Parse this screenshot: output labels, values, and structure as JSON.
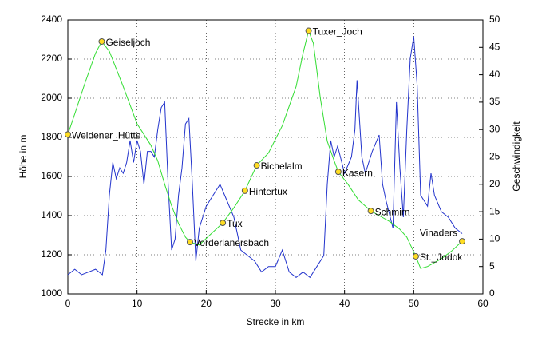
{
  "chart_data": {
    "type": "line",
    "xlabel": "Strecke in km",
    "ylabel": "Höhe in m",
    "y2label": "Geschwindigkeit",
    "xlim": [
      0,
      60
    ],
    "xticks": [
      0,
      10,
      20,
      30,
      40,
      50,
      60
    ],
    "ylim": [
      1000,
      2400
    ],
    "yticks": [
      1000,
      1200,
      1400,
      1600,
      1800,
      2000,
      2200,
      2400
    ],
    "y2lim": [
      0,
      50
    ],
    "y2ticks": [
      0,
      5,
      10,
      15,
      20,
      25,
      30,
      35,
      40,
      45,
      50
    ],
    "grid": true,
    "series": [
      {
        "color": "#33dd33",
        "x": [
          0,
          1,
          2.5,
          4,
          4.9,
          6,
          8,
          10,
          12,
          13,
          14,
          15,
          16,
          17,
          17.65,
          19,
          20.5,
          22.4,
          24,
          25.6,
          27.3,
          29,
          31,
          33,
          34,
          34.8,
          35.5,
          36.5,
          37.5,
          38.5,
          39.1,
          40.5,
          42,
          43.8,
          45,
          46.5,
          48,
          49,
          50.3,
          51,
          52,
          54,
          55.5,
          57
        ],
        "values": [
          1815,
          1920,
          2080,
          2230,
          2290,
          2240,
          2060,
          1870,
          1760,
          1680,
          1560,
          1450,
          1360,
          1290,
          1265,
          1250,
          1300,
          1363,
          1440,
          1527,
          1657,
          1720,
          1860,
          2060,
          2230,
          2345,
          2280,
          2000,
          1780,
          1680,
          1624,
          1560,
          1480,
          1424,
          1400,
          1370,
          1330,
          1290,
          1192,
          1130,
          1140,
          1180,
          1220,
          1269
        ]
      },
      {
        "color": "#2233cc",
        "axis": "y2",
        "x": [
          0,
          1,
          2,
          3,
          4,
          5,
          5.5,
          6,
          6.5,
          7,
          7.5,
          8,
          8.5,
          9,
          9.5,
          10,
          10.5,
          11,
          11.5,
          12,
          12.5,
          13,
          13.5,
          14,
          14.5,
          15,
          15.5,
          16,
          16.5,
          17,
          17.5,
          18,
          18.5,
          19,
          20,
          21,
          22,
          23,
          24,
          25,
          26,
          27,
          28,
          29,
          30,
          31,
          32,
          33,
          34,
          35,
          36,
          37,
          37.5,
          38,
          38.5,
          39,
          40,
          41,
          41.5,
          41.8,
          42.5,
          43,
          44,
          45,
          45.5,
          46,
          47,
          47.5,
          48,
          48.5,
          49,
          49.5,
          50,
          50.5,
          51,
          52,
          52.5,
          53,
          54,
          55,
          56,
          57
        ],
        "values": [
          3.5,
          4.5,
          3.5,
          4,
          4.5,
          3.5,
          8,
          18,
          24,
          21,
          23,
          22,
          24,
          28,
          24,
          28,
          26,
          20,
          26,
          26,
          25,
          30,
          34,
          35,
          20,
          8,
          10,
          18,
          23,
          31,
          32,
          20,
          6,
          12,
          16,
          18,
          20,
          17,
          14,
          8,
          7,
          6,
          4,
          5,
          5,
          8,
          4,
          3,
          4,
          3,
          5,
          7,
          20,
          28,
          25,
          27,
          22,
          25,
          30,
          39,
          25,
          22,
          26,
          29,
          20,
          17,
          12,
          35,
          23,
          14,
          30,
          43,
          47,
          38,
          18,
          16,
          22,
          18,
          15,
          14,
          12,
          11
        ]
      }
    ],
    "points": [
      {
        "label": "Weidener_Hütte",
        "x": 0,
        "y": 1815
      },
      {
        "label": "Geiseljoch",
        "x": 4.9,
        "y": 2290
      },
      {
        "label": "Vorderlanersbach",
        "x": 17.65,
        "y": 1265
      },
      {
        "label": "Tux",
        "x": 22.4,
        "y": 1363
      },
      {
        "label": "Hintertux",
        "x": 25.6,
        "y": 1527
      },
      {
        "label": "Bichelalm",
        "x": 27.3,
        "y": 1657
      },
      {
        "label": "Tuxer_Joch",
        "x": 34.8,
        "y": 2345
      },
      {
        "label": "Kasern",
        "x": 39.1,
        "y": 1624
      },
      {
        "label": "Schmirn",
        "x": 43.8,
        "y": 1424
      },
      {
        "label": "St._Jodok",
        "x": 50.3,
        "y": 1192
      },
      {
        "label": "Vinaders",
        "x": 57,
        "y": 1269
      }
    ]
  }
}
